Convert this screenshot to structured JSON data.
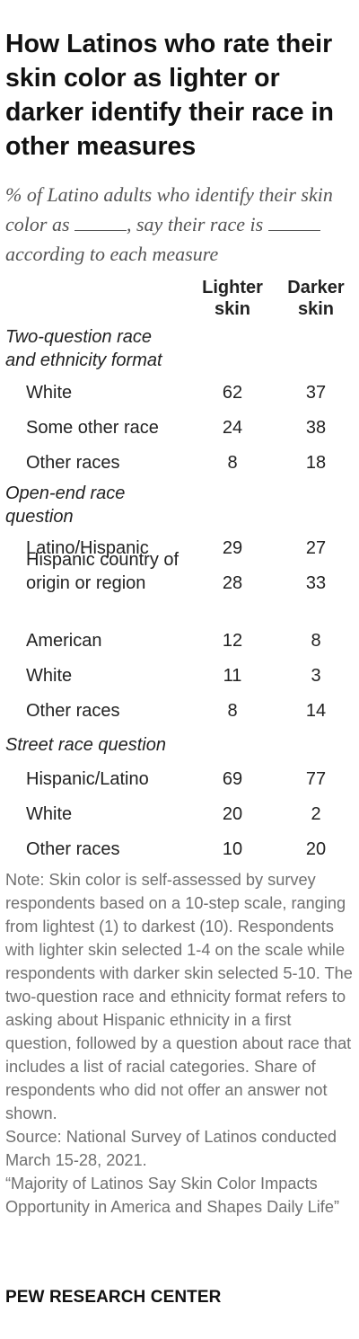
{
  "title": "How Latinos who rate their skin color as lighter or darker identify their race in other measures",
  "subtitle_part1": "% of Latino adults who identify their skin color as",
  "subtitle_part2": ", say their race is",
  "subtitle_part3": "according to each measure",
  "columns": {
    "lighter": "Lighter skin",
    "darker": "Darker skin"
  },
  "chart_data": {
    "type": "table",
    "columns": [
      "Lighter skin",
      "Darker skin"
    ],
    "groups": [
      {
        "name": "Two-question race and ethnicity format",
        "rows": [
          {
            "label": "White",
            "lighter": 62,
            "darker": 37
          },
          {
            "label": "Some other race",
            "lighter": 24,
            "darker": 38
          },
          {
            "label": "Other races",
            "lighter": 8,
            "darker": 18
          }
        ]
      },
      {
        "name": "Open-end race question",
        "rows": [
          {
            "label": "Latino/Hispanic",
            "lighter": 29,
            "darker": 27
          },
          {
            "label": "Hispanic country of origin or region",
            "lighter": 28,
            "darker": 33
          },
          {
            "label": "American",
            "lighter": 12,
            "darker": 8
          },
          {
            "label": "White",
            "lighter": 11,
            "darker": 3
          },
          {
            "label": "Other races",
            "lighter": 8,
            "darker": 14
          }
        ]
      },
      {
        "name": "Street race question",
        "rows": [
          {
            "label": "Hispanic/Latino",
            "lighter": 69,
            "darker": 77
          },
          {
            "label": "White",
            "lighter": 20,
            "darker": 2
          },
          {
            "label": "Other races",
            "lighter": 10,
            "darker": 20
          }
        ]
      }
    ]
  },
  "note": "Note: Skin color is self-assessed by survey respondents based on a 10-step scale, ranging from lightest (1) to darkest (10). Respondents with lighter skin selected 1-4 on the scale while respondents with darker skin selected 5-10. The two-question race and ethnicity format refers to asking about Hispanic ethnicity in a first question, followed by a question about race that includes a list of racial categories. Share of respondents who did not offer an answer not shown.",
  "source": "Source: National Survey of Latinos conducted March 15-28, 2021.",
  "report": "“Majority of Latinos Say Skin Color Impacts Opportunity in America and Shapes Daily Life”",
  "brand": "PEW RESEARCH CENTER"
}
